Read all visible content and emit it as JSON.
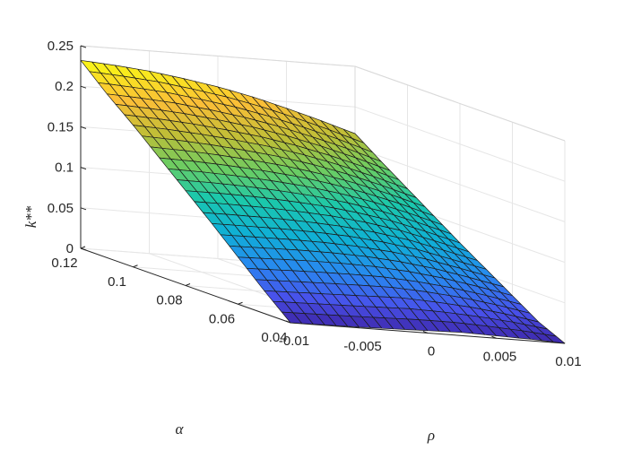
{
  "chart_data": {
    "type": "surface",
    "title": "",
    "xlabel": "ρ",
    "ylabel": "α",
    "zlabel": "k**",
    "x_range": [
      -0.01,
      0.01
    ],
    "y_range": [
      0.04,
      0.12
    ],
    "z_range": [
      0,
      0.25
    ],
    "x_ticks": [
      "-0.01",
      "-0.005",
      "0",
      "0.005",
      "0.01"
    ],
    "y_ticks": [
      "0.04",
      "0.06",
      "0.08",
      "0.1",
      "0.12"
    ],
    "z_ticks": [
      "0",
      "0.05",
      "0.1",
      "0.15",
      "0.2",
      "0.25"
    ],
    "x": [
      -0.01,
      -0.0075,
      -0.005,
      -0.0025,
      0,
      0.0025,
      0.005,
      0.0075,
      0.01
    ],
    "y": [
      0.04,
      0.05,
      0.06,
      0.07,
      0.08,
      0.09,
      0.1,
      0.11,
      0.12
    ],
    "z": [
      [
        0.0,
        0.0005,
        0.001,
        0.002,
        0.003,
        0.004,
        0.003,
        0.002,
        0.0
      ],
      [
        0.028,
        0.029,
        0.03,
        0.031,
        0.032,
        0.03,
        0.027,
        0.022,
        0.015
      ],
      [
        0.058,
        0.059,
        0.06,
        0.06,
        0.059,
        0.056,
        0.051,
        0.044,
        0.036
      ],
      [
        0.088,
        0.088,
        0.088,
        0.087,
        0.085,
        0.081,
        0.075,
        0.066,
        0.057
      ],
      [
        0.117,
        0.117,
        0.116,
        0.114,
        0.111,
        0.106,
        0.099,
        0.089,
        0.078
      ],
      [
        0.146,
        0.145,
        0.143,
        0.14,
        0.136,
        0.13,
        0.122,
        0.112,
        0.1
      ],
      [
        0.175,
        0.173,
        0.17,
        0.166,
        0.161,
        0.154,
        0.145,
        0.134,
        0.122
      ],
      [
        0.202,
        0.2,
        0.197,
        0.192,
        0.186,
        0.178,
        0.168,
        0.157,
        0.144
      ],
      [
        0.232,
        0.229,
        0.225,
        0.219,
        0.212,
        0.203,
        0.192,
        0.18,
        0.167
      ]
    ],
    "grid": true,
    "colormap": "parula",
    "colors": {
      "axis": "#262626",
      "grid": "#e6e6e6",
      "edge": "#1a1a1a",
      "background": "#ffffff"
    }
  }
}
